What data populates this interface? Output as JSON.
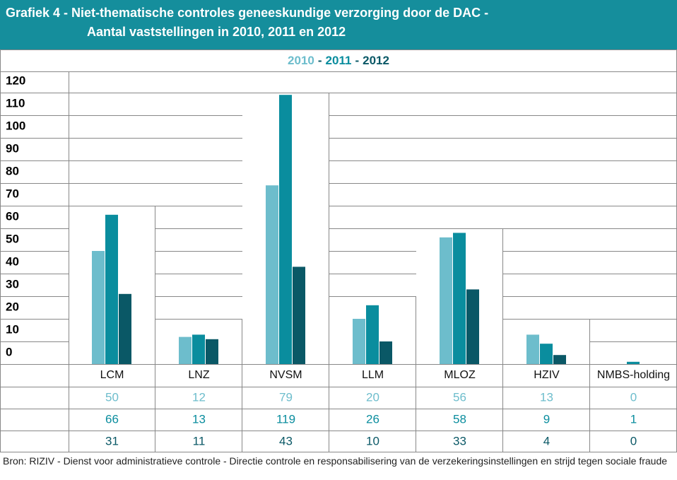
{
  "chart_data": {
    "type": "bar",
    "title": [
      "Grafiek 4 - Niet-thematische controles geneeskundige verzorging door de DAC -",
      "Aantal vaststellingen in 2010, 2011 en 2012"
    ],
    "legend_separator": "-",
    "categories": [
      "LCM",
      "LNZ",
      "NVSM",
      "LLM",
      "MLOZ",
      "HZIV",
      "NMBS-holding"
    ],
    "series": [
      {
        "name": "2010",
        "color": "#6dbdcc",
        "values": [
          50,
          12,
          79,
          20,
          56,
          13,
          0
        ]
      },
      {
        "name": "2011",
        "color": "#0a8d9e",
        "values": [
          66,
          13,
          119,
          26,
          58,
          9,
          1
        ]
      },
      {
        "name": "2012",
        "color": "#0a5866",
        "values": [
          31,
          11,
          43,
          10,
          33,
          4,
          0
        ]
      }
    ],
    "ylim": [
      0,
      120
    ],
    "yticks": [
      0,
      10,
      20,
      30,
      40,
      50,
      60,
      70,
      80,
      90,
      100,
      110,
      120
    ],
    "grid": true,
    "source": "Bron: RIZIV - Dienst voor administratieve controle - Directie controle en responsabilisering van de verzekeringsinstellingen en strijd tegen sociale fraude"
  }
}
